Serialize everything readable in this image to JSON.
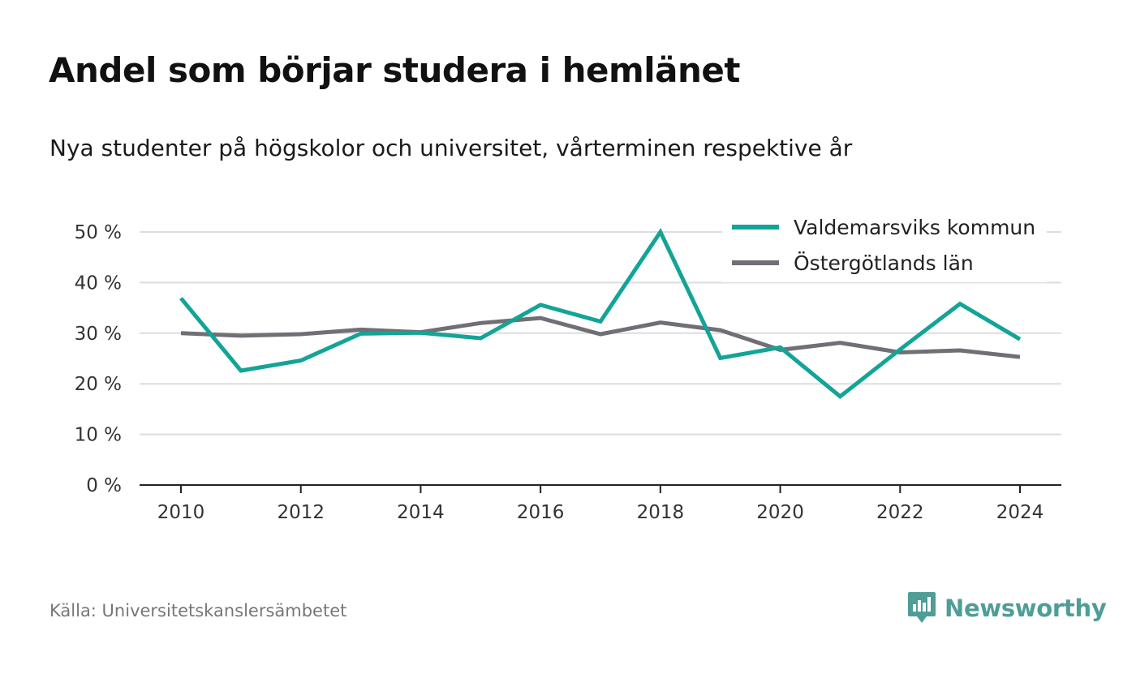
{
  "title": "Andel som börjar studera i hemlänet",
  "subtitle": "Nya studenter på högskolor och universitet, vårterminen respektive år",
  "source": "Källa: Universitetskanslersämbetet",
  "brand": {
    "name": "Newsworthy",
    "icon": "newsworthy-logo-icon",
    "color": "#4f9d97"
  },
  "chart_data": {
    "type": "line",
    "title": "Andel som börjar studera i hemlänet",
    "subtitle": "Nya studenter på högskolor och universitet, vårterminen respektive år",
    "x": [
      2010,
      2011,
      2012,
      2013,
      2014,
      2015,
      2016,
      2017,
      2018,
      2019,
      2020,
      2021,
      2022,
      2023,
      2024
    ],
    "x_ticks": [
      2010,
      2012,
      2014,
      2016,
      2018,
      2020,
      2022,
      2024
    ],
    "x_tick_labels": [
      "2010",
      "2012",
      "2014",
      "2016",
      "2018",
      "2020",
      "2022",
      "2024"
    ],
    "y_ticks": [
      0,
      10,
      20,
      30,
      40,
      50
    ],
    "y_tick_labels": [
      "0 %",
      "10 %",
      "20 %",
      "30 %",
      "40 %",
      "50 %"
    ],
    "ylim": [
      0,
      50
    ],
    "xlim": [
      2010,
      2024
    ],
    "grid": true,
    "legend_position": "top-right",
    "series": [
      {
        "name": "Valdemarsviks kommun",
        "color": "#13a497",
        "values": [
          36.9,
          22.6,
          24.6,
          29.9,
          30.1,
          29.0,
          35.6,
          32.3,
          50.0,
          25.1,
          27.2,
          17.5,
          26.8,
          35.8,
          28.8
        ]
      },
      {
        "name": "Östergötlands län",
        "color": "#706f76",
        "values": [
          30.0,
          29.5,
          29.8,
          30.7,
          30.2,
          32.0,
          33.0,
          29.8,
          32.1,
          30.6,
          26.7,
          28.1,
          26.2,
          26.6,
          25.3
        ]
      }
    ]
  }
}
